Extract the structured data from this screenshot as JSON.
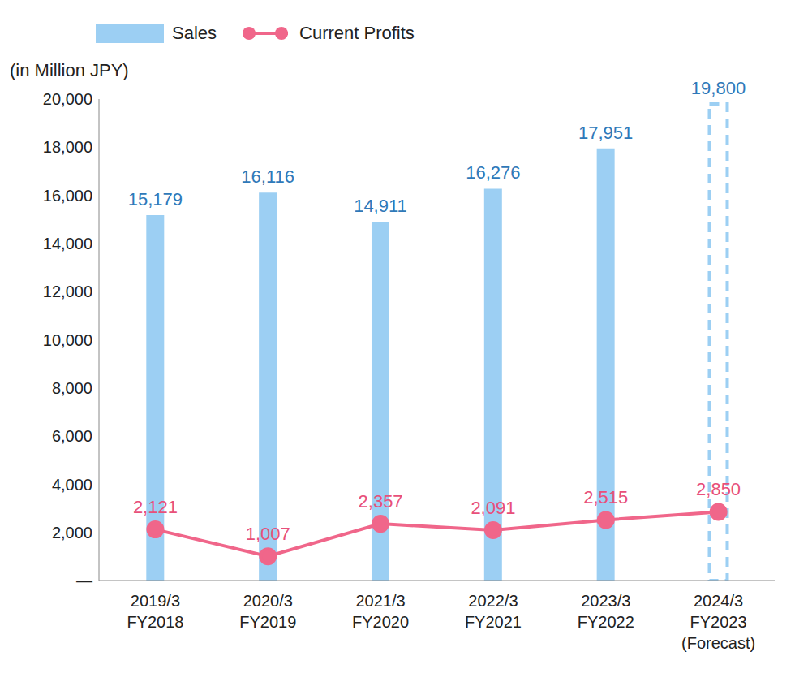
{
  "chart_data": {
    "type": "bar",
    "ylabel": "(in Million JPY)",
    "categories": [
      "2019/3\nFY2018",
      "2020/3\nFY2019",
      "2021/3\nFY2020",
      "2022/3\nFY2021",
      "2023/3\nFY2022",
      "2024/3\nFY2023\n(Forecast)"
    ],
    "series": [
      {
        "name": "Sales",
        "type": "bar",
        "color": "#9ccff3",
        "colors": [
          "#9ccff3",
          "#9ccff3",
          "#9ccff3",
          "#9ccff3",
          "#9ccff3",
          "none"
        ],
        "values": [
          15179,
          16116,
          14911,
          16276,
          17951,
          19800
        ],
        "value_labels": [
          "15,179",
          "16,116",
          "14,911",
          "16,276",
          "17,951",
          "19,800"
        ]
      },
      {
        "name": "Current Profits",
        "type": "line",
        "color": "#f0668a",
        "marker": "circle",
        "values": [
          2121,
          1007,
          2357,
          2091,
          2515,
          2850
        ],
        "value_labels": [
          "2,121",
          "1,007",
          "2,357",
          "2,091",
          "2,515",
          "2,850"
        ]
      }
    ],
    "ylim": [
      0,
      20000
    ],
    "yticks": [
      {
        "value": 0,
        "label": "—"
      },
      {
        "value": 2000,
        "label": "2,000"
      },
      {
        "value": 4000,
        "label": "4,000"
      },
      {
        "value": 6000,
        "label": "6,000"
      },
      {
        "value": 8000,
        "label": "8,000"
      },
      {
        "value": 10000,
        "label": "10,000"
      },
      {
        "value": 12000,
        "label": "12,000"
      },
      {
        "value": 14000,
        "label": "14,000"
      },
      {
        "value": 16000,
        "label": "16,000"
      },
      {
        "value": 18000,
        "label": "18,000"
      },
      {
        "value": 20000,
        "label": "20,000"
      }
    ],
    "grid": false,
    "legend": "top left",
    "data_labels": true
  }
}
